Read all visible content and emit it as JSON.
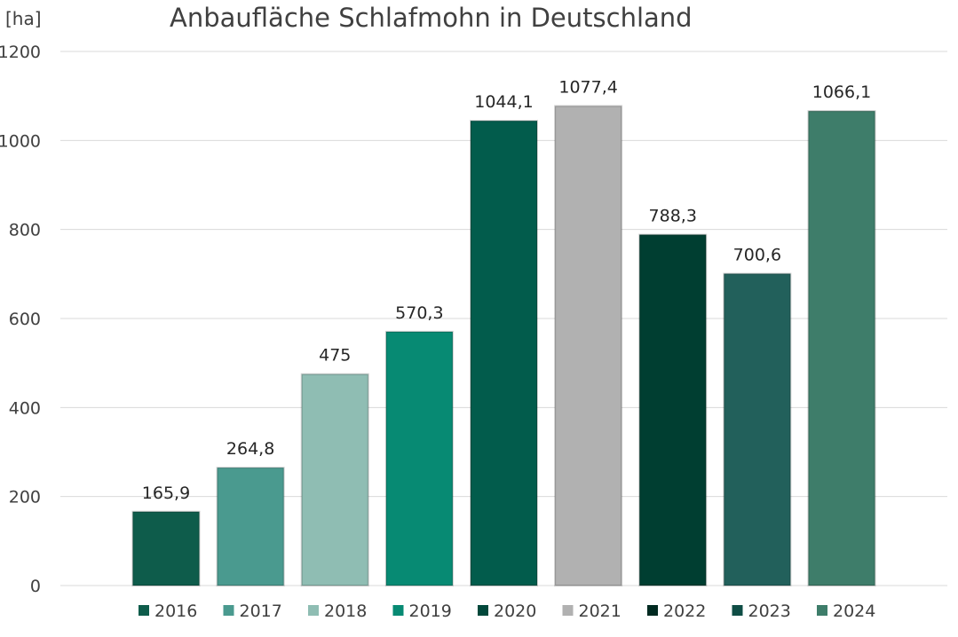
{
  "chart_data": {
    "type": "bar",
    "title": "Anbaufläche Schlafmohn in Deutschland",
    "ylabel": "[ha]",
    "xlabel": "",
    "ylim": [
      0,
      1200
    ],
    "yticks": [
      0,
      200,
      400,
      600,
      800,
      1000,
      1200
    ],
    "grid": true,
    "legend_position": "bottom",
    "categories": [
      "2016",
      "2017",
      "2018",
      "2019",
      "2020",
      "2021",
      "2022",
      "2023",
      "2024"
    ],
    "values": [
      165.9,
      264.8,
      475,
      570.3,
      1044.1,
      1077.4,
      788.3,
      700.6,
      1066.1
    ],
    "data_labels": [
      "165,9",
      "264,8",
      "475",
      "570,3",
      "1044,1",
      "1077,4",
      "788,3",
      "700,6",
      "1066,1"
    ],
    "colors": [
      "#0e5c4b",
      "#4a9a8f",
      "#8fbdb3",
      "#078a73",
      "#025c4c",
      "#b1b1b1",
      "#003e31",
      "#22605b",
      "#3e7d6a"
    ],
    "legend_colors": [
      "#0e5c4b",
      "#4a9a8f",
      "#8fbdb3",
      "#078a73",
      "#01483b",
      "#b1b1b1",
      "#002a21",
      "#0f4d45",
      "#3e7d6a"
    ]
  }
}
